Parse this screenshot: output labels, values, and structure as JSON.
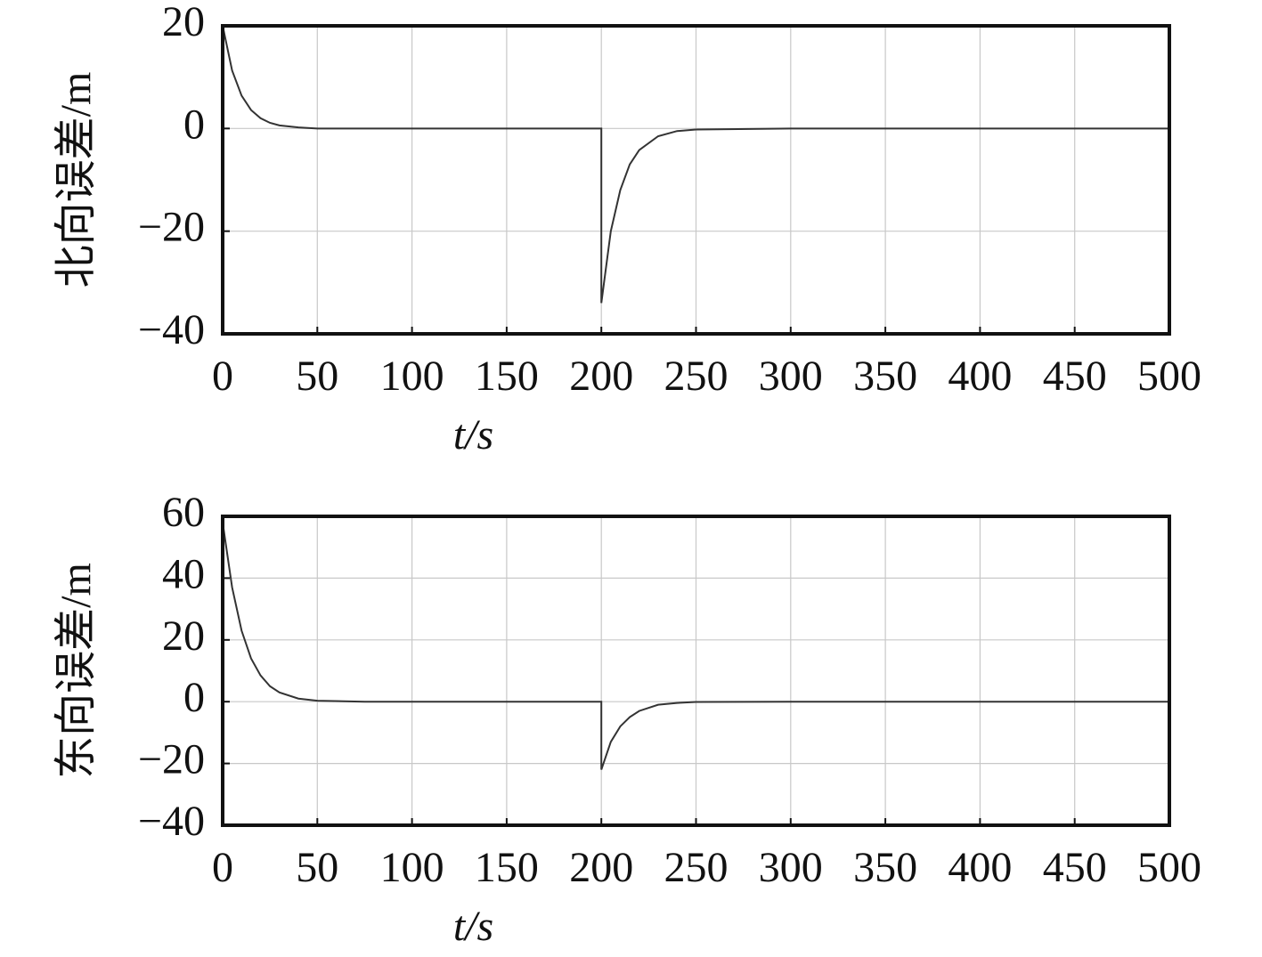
{
  "chart_data": [
    {
      "type": "line",
      "ylabel": "北向误差/m",
      "xlabel": "t/s",
      "x": [
        0,
        5,
        10,
        15,
        20,
        25,
        30,
        40,
        50,
        75,
        100,
        150,
        200,
        200,
        205,
        210,
        215,
        220,
        230,
        240,
        250,
        300,
        400,
        500
      ],
      "series": [
        {
          "color": "#333333",
          "values": [
            20,
            11.3,
            6.4,
            3.6,
            2,
            1.1,
            0.6,
            0.2,
            0,
            0,
            0,
            0,
            0,
            -34,
            -20,
            -12,
            -7,
            -4.2,
            -1.5,
            -0.5,
            -0.2,
            0,
            0,
            0
          ]
        }
      ],
      "xlim": [
        0,
        500
      ],
      "xticks": [
        0,
        50,
        100,
        150,
        200,
        250,
        300,
        350,
        400,
        450,
        500
      ],
      "ylim": [
        -40,
        20
      ],
      "yticks": [
        {
          "value": -40,
          "label": "−40"
        },
        {
          "value": -20,
          "label": "−20"
        },
        0,
        20
      ],
      "grid": true
    },
    {
      "type": "line",
      "ylabel": "东向误差/m",
      "xlabel": "t/s",
      "x": [
        0,
        5,
        10,
        15,
        20,
        25,
        30,
        40,
        50,
        75,
        100,
        150,
        200,
        200,
        205,
        210,
        215,
        220,
        230,
        240,
        250,
        300,
        400,
        500
      ],
      "series": [
        {
          "color": "#333333",
          "values": [
            58,
            37,
            23,
            14,
            8.5,
            5,
            3,
            1,
            0.3,
            0,
            0,
            0,
            0,
            -22,
            -13,
            -8,
            -5,
            -3,
            -1,
            -0.4,
            -0.1,
            0,
            0,
            0
          ]
        }
      ],
      "xlim": [
        0,
        500
      ],
      "xticks": [
        0,
        50,
        100,
        150,
        200,
        250,
        300,
        350,
        400,
        450,
        500
      ],
      "ylim": [
        -40,
        60
      ],
      "yticks": [
        {
          "value": -40,
          "label": "−40"
        },
        {
          "value": -20,
          "label": "−20"
        },
        0,
        20,
        40,
        60
      ],
      "grid": true
    }
  ]
}
